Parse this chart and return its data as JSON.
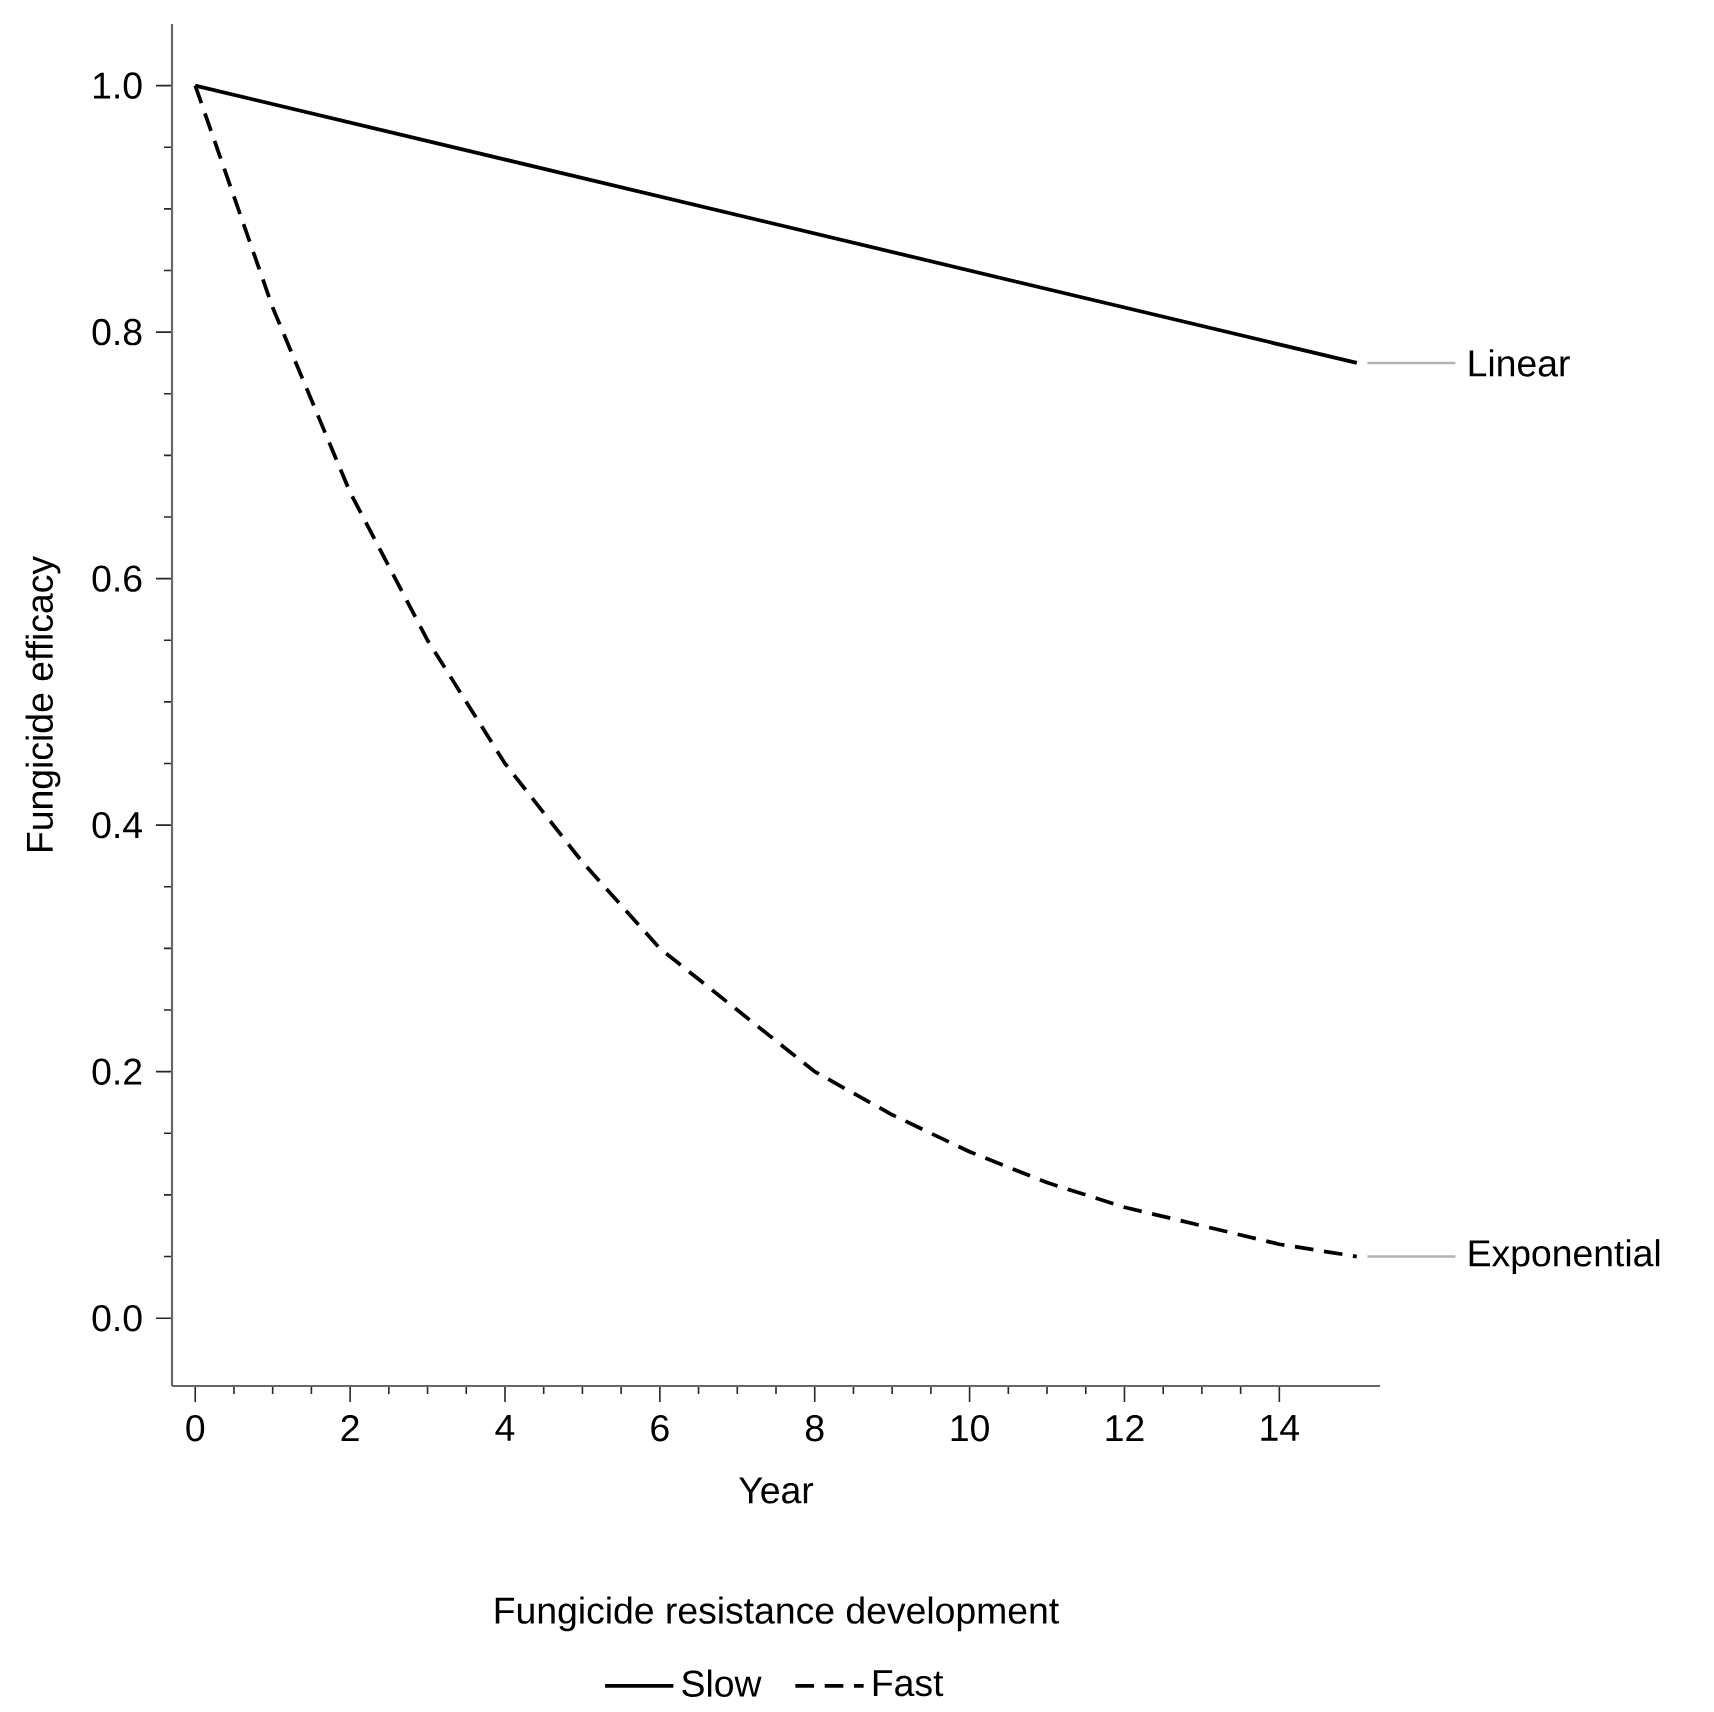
{
  "chart_data": {
    "type": "line",
    "xlabel": "Year",
    "ylabel": "Fungicide efficacy",
    "legend_title": "Fungicide resistance development",
    "x": [
      0,
      1,
      2,
      3,
      4,
      5,
      6,
      7,
      8,
      9,
      10,
      11,
      12,
      13,
      14,
      15
    ],
    "series": [
      {
        "name": "Slow",
        "color": "#000000",
        "line_style": "solid",
        "x": [
          0,
          15
        ],
        "values": [
          1.0,
          0.775
        ]
      },
      {
        "name": "Fast",
        "color": "#000000",
        "line_style": "dashed",
        "values": [
          1.0,
          0.82,
          0.67,
          0.55,
          0.45,
          0.37,
          0.3,
          0.25,
          0.2,
          0.165,
          0.135,
          0.11,
          0.09,
          0.075,
          0.06,
          0.05
        ]
      }
    ],
    "annotations": [
      {
        "text": "Linear",
        "x": 15,
        "y": 0.775
      },
      {
        "text": "Exponential",
        "x": 15,
        "y": 0.05
      }
    ],
    "xlim": [
      -0.3,
      15.3
    ],
    "ylim": [
      -0.055,
      1.05
    ],
    "xticks": [
      0,
      2,
      4,
      6,
      8,
      10,
      12,
      14
    ],
    "yticks": [
      {
        "value": 0,
        "label": "0.0"
      },
      0.2,
      0.4,
      0.6,
      0.8,
      {
        "value": 1,
        "label": "1.0"
      }
    ],
    "grid": false,
    "legend": "bottom",
    "marker": "none"
  }
}
